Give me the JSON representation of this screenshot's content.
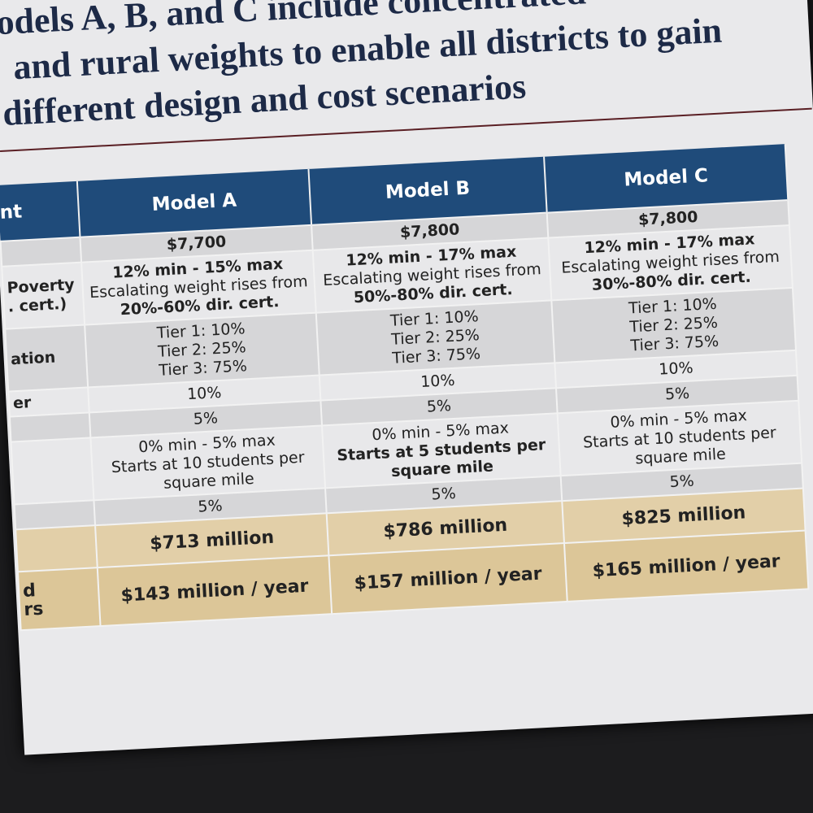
{
  "title": [
    "odels A, B, and C include concentrated",
    "and rural weights to enable all districts to gain",
    "different design and cost scenarios"
  ],
  "table": {
    "header": [
      "nt",
      "Model A",
      "Model B",
      "Model C"
    ],
    "rows": [
      {
        "cells": [
          [
            "$7,700"
          ],
          [
            "$7,800"
          ],
          [
            "$7,800"
          ]
        ]
      },
      {
        "label": [
          "Poverty",
          ". cert.)"
        ],
        "cells": [
          [
            "12% min - 15% max",
            "Escalating weight rises from",
            "20%-60% dir. cert."
          ],
          [
            "12% min - 17% max",
            "Escalating weight rises from",
            "50%-80% dir. cert."
          ],
          [
            "12% min - 17% max",
            "Escalating weight rises from",
            "30%-80% dir. cert."
          ]
        ]
      },
      {
        "label": [
          "ation"
        ],
        "cells": [
          [
            "Tier 1: 10%",
            "Tier 2: 25%",
            "Tier 3: 75%"
          ],
          [
            "Tier 1: 10%",
            "Tier 2: 25%",
            "Tier 3: 75%"
          ],
          [
            "Tier 1: 10%",
            "Tier 2: 25%",
            "Tier 3: 75%"
          ]
        ]
      },
      {
        "label": [
          "er"
        ],
        "cells": [
          [
            "10%"
          ],
          [
            "10%"
          ],
          [
            "10%"
          ]
        ]
      },
      {
        "cells": [
          [
            "5%"
          ],
          [
            "5%"
          ],
          [
            "5%"
          ]
        ]
      },
      {
        "cells": [
          [
            "0% min - 5% max",
            "Starts at 10 students per",
            "square mile"
          ],
          [
            "0% min - 5% max",
            "Starts at 5 students per",
            "square mile"
          ],
          [
            "0% min - 5% max",
            "Starts at 10 students per",
            "square mile"
          ]
        ]
      },
      {
        "cells": [
          [
            "5%"
          ],
          [
            "5%"
          ],
          [
            "5%"
          ]
        ]
      },
      {
        "cells": [
          [
            "$713 million"
          ],
          [
            "$786 million"
          ],
          [
            "$825 million"
          ]
        ]
      },
      {
        "label": [
          "d",
          "rs"
        ],
        "cells": [
          [
            "$143 million / year"
          ],
          [
            "$157 million / year"
          ],
          [
            "$165 million / year"
          ]
        ]
      }
    ]
  }
}
